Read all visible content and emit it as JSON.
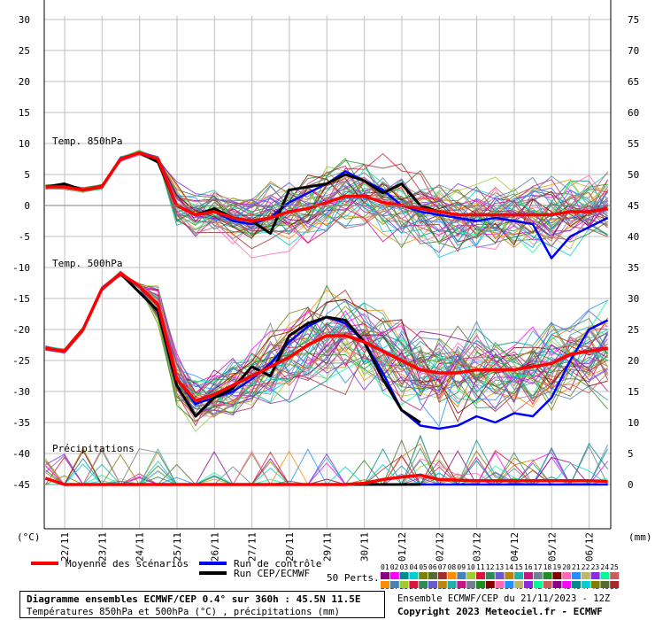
{
  "left_axis": {
    "unit": "(°C)",
    "ticks": [
      30,
      25,
      20,
      15,
      10,
      5,
      0,
      -5,
      -10,
      -15,
      -20,
      -25,
      -30,
      -35,
      -40,
      -45
    ]
  },
  "right_axis": {
    "unit": "(mm)",
    "ticks": [
      75,
      70,
      65,
      60,
      55,
      50,
      45,
      40,
      35,
      30,
      25,
      20,
      15,
      10,
      5,
      0
    ]
  },
  "dates": [
    "22/11",
    "23/11",
    "24/11",
    "25/11",
    "26/11",
    "27/11",
    "28/11",
    "29/11",
    "30/11",
    "01/12",
    "02/12",
    "03/12",
    "04/12",
    "05/12",
    "06/12"
  ],
  "sections": {
    "t850": "Temp. 850hPa",
    "t500": "Temp. 500hPa",
    "precip": "Précipitations"
  },
  "legend": {
    "mean": "Moyenne des scénarios",
    "control": "Run de contrôle",
    "oper": "Run CEP/ECMWF",
    "perts": "50 Perts.",
    "pert_row1": [
      "01",
      "02",
      "03",
      "04",
      "05",
      "06",
      "07",
      "08",
      "09",
      "10",
      "11",
      "12",
      "13",
      "14",
      "15",
      "16",
      "17",
      "18",
      "19",
      "20",
      "21",
      "22",
      "23",
      "24",
      "25"
    ],
    "pert_row2": [
      "26",
      "27",
      "28",
      "29",
      "30",
      "31",
      "32",
      "33",
      "34",
      "35",
      "36",
      "37",
      "38",
      "39",
      "40",
      "41",
      "42",
      "43",
      "44",
      "45",
      "46",
      "47",
      "48",
      "49",
      "50"
    ]
  },
  "footer": {
    "title": "Diagramme ensembles ECMWF/CEP 0.4° sur 360h : 45.5N 11.5E",
    "subtitle": "Températures 850hPa et 500hPa (°C) , précipitations (mm)",
    "run": "Ensemble ECMWF/CEP du 21/11/2023 - 12Z",
    "copyright": "Copyright 2023 Meteociel.fr - ECMWF"
  },
  "colors": {
    "mean": "#ff0000",
    "control": "#0000ff",
    "oper": "#000000",
    "grid": "#c0c0c0"
  },
  "chart_data": {
    "type": "line",
    "x": [
      "21/11 12Z",
      "22/11",
      "22/11 12Z",
      "23/11",
      "23/11 12Z",
      "24/11",
      "24/11 12Z",
      "25/11",
      "25/11 12Z",
      "26/11",
      "26/11 12Z",
      "27/11",
      "27/11 12Z",
      "28/11",
      "28/11 12Z",
      "29/11",
      "29/11 12Z",
      "30/11",
      "30/11 12Z",
      "01/12",
      "01/12 12Z",
      "02/12",
      "02/12 12Z",
      "03/12",
      "03/12 12Z",
      "04/12",
      "04/12 12Z",
      "05/12",
      "05/12 12Z",
      "06/12",
      "06/12 12Z"
    ],
    "ylim_temp": [
      -45,
      30
    ],
    "ylim_precip_mm": [
      0,
      75
    ],
    "t850": {
      "mean": [
        3,
        3,
        2.5,
        3,
        7.5,
        8.5,
        7.5,
        0,
        -1.5,
        -1,
        -2,
        -2.5,
        -2,
        -1,
        -0.5,
        0.5,
        1.5,
        1.5,
        0.5,
        0,
        -0.5,
        -1,
        -1.5,
        -1.5,
        -1.5,
        -1.5,
        -1.5,
        -1.5,
        -1,
        -1,
        -0.5
      ],
      "control": [
        3,
        3,
        2.5,
        3,
        7.5,
        8.5,
        7.5,
        0,
        -1.5,
        -1,
        -2.5,
        -3,
        -2,
        0.5,
        2,
        3.5,
        5.5,
        4,
        2.5,
        0,
        -1,
        -1.5,
        -2,
        -2.5,
        -2,
        -2.5,
        -3,
        -8.5,
        -5,
        -3.5,
        -2
      ],
      "oper": [
        3,
        3.5,
        2.5,
        3,
        7.5,
        8.5,
        7,
        0,
        -1.5,
        -0.5,
        -2,
        -2.5,
        -4.5,
        2.5,
        3,
        3.5,
        5,
        4,
        2,
        3.5,
        0,
        -1,
        null,
        null,
        null,
        null,
        null,
        null,
        null,
        null,
        null
      ]
    },
    "t500": {
      "mean": [
        -23,
        -23.5,
        -20,
        -13.5,
        -11,
        -13,
        -16,
        -28,
        -31.5,
        -30.5,
        -29,
        -27.5,
        -26,
        -24.5,
        -22.5,
        -21,
        -21,
        -22,
        -23.5,
        -25,
        -26.5,
        -27,
        -27,
        -26.5,
        -26.5,
        -26.5,
        -26,
        -25.5,
        -24,
        -23.5,
        -23
      ],
      "control": [
        -23,
        -23.5,
        -20,
        -13.5,
        -11,
        -13,
        -16,
        -28,
        -32,
        -31,
        -30,
        -28,
        -25.5,
        -22,
        -19.5,
        -18,
        -19,
        -22,
        -27,
        -33,
        -35.5,
        -36,
        -35.5,
        -34,
        -35,
        -33.5,
        -34,
        -31,
        -25,
        -20,
        -18.5
      ],
      "oper": [
        -23,
        -23.5,
        -20,
        -13.5,
        -11,
        -14,
        -17,
        -29,
        -34,
        -31,
        -29.5,
        -26,
        -27.5,
        -21,
        -19,
        -18,
        -18.5,
        -22,
        -28,
        -33,
        -35,
        null,
        null,
        null,
        null,
        null,
        null,
        null,
        null,
        null,
        null
      ]
    },
    "precip_mm": {
      "mean": [
        1,
        0,
        0,
        0,
        0,
        0,
        0,
        0,
        0,
        0,
        0,
        0,
        0,
        0,
        0,
        0,
        0,
        0.2,
        0.8,
        1.2,
        1.5,
        0.8,
        0.7,
        0.6,
        0.6,
        0.6,
        0.6,
        0.6,
        0.6,
        0.6,
        0.5
      ],
      "control": [
        1,
        0,
        0,
        0,
        0,
        0,
        0,
        0,
        0,
        0,
        0,
        0,
        0,
        0,
        0,
        0,
        0,
        0,
        0,
        0,
        0,
        0,
        0,
        0,
        0,
        0,
        0,
        0,
        0,
        0,
        0
      ],
      "oper": [
        1,
        0,
        0,
        0,
        0,
        0,
        0,
        0,
        0,
        0,
        0,
        0,
        0,
        0,
        0,
        0,
        0,
        0,
        0,
        0,
        0,
        null,
        null,
        null,
        null,
        null,
        null,
        null,
        null,
        null,
        null
      ]
    },
    "grid": true
  }
}
